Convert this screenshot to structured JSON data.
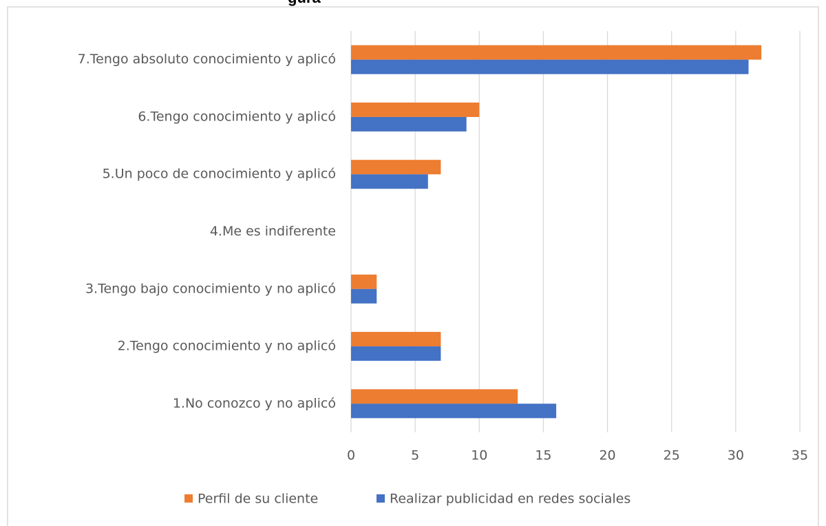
{
  "chart_data": {
    "type": "bar",
    "orientation": "horizontal",
    "title": "gura",
    "categories": [
      "1.No conozco y no aplicó",
      "2.Tengo conocimiento y no aplicó",
      "3.Tengo bajo conocimiento y no aplicó",
      "4.Me es indiferente",
      "5.Un poco de conocimiento y aplicó",
      "6.Tengo conocimiento y aplicó",
      "7.Tengo absoluto conocimiento y aplicó"
    ],
    "series": [
      {
        "name": "Perfil de su cliente",
        "color": "#ed7d31",
        "values": [
          13,
          7,
          2,
          0,
          7,
          10,
          32
        ]
      },
      {
        "name": "Realizar publicidad en redes sociales",
        "color": "#4472c4",
        "values": [
          16,
          7,
          2,
          0,
          6,
          9,
          31
        ]
      }
    ],
    "xlim": [
      0,
      35
    ],
    "xticks": [
      0,
      5,
      10,
      15,
      20,
      25,
      30,
      35
    ],
    "grid": true,
    "legend": "bottom"
  }
}
